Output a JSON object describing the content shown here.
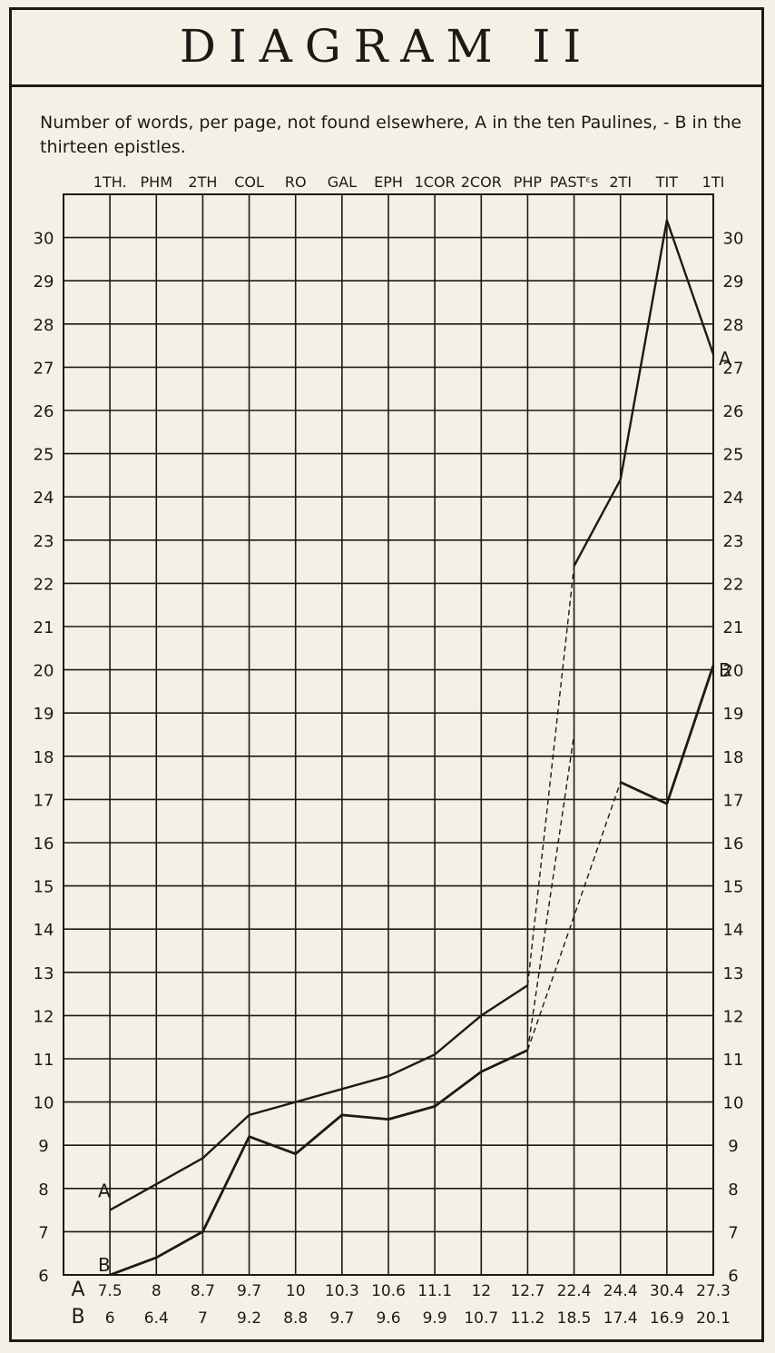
{
  "chart_data": {
    "type": "line",
    "title": "DIAGRAM II",
    "subtitle": "Number of words, per page, not found elsewhere, A in the ten Paulines, - B in the thirteen epistles.",
    "categories": [
      "1TH.",
      "PHM",
      "2TH",
      "COL",
      "RO",
      "GAL",
      "EPH",
      "1COR",
      "2COR",
      "PHP",
      "PASTᵋs",
      "2TI",
      "TIT",
      "1TI"
    ],
    "ylim": [
      6,
      31
    ],
    "yticks": [
      6,
      7,
      8,
      9,
      10,
      11,
      12,
      13,
      14,
      15,
      16,
      17,
      18,
      19,
      20,
      21,
      22,
      23,
      24,
      25,
      26,
      27,
      28,
      29,
      30
    ],
    "grid": true,
    "series": [
      {
        "name": "A",
        "values": [
          7.5,
          null,
          8.7,
          9.7,
          10,
          10.3,
          10.6,
          11.1,
          12,
          12.7,
          22.4,
          24.4,
          30.4,
          27.3
        ],
        "labels": [
          "7.5",
          "8",
          "8.7",
          "9.7",
          "10",
          "10.3",
          "10.6",
          "11.1",
          "12",
          "12.7",
          "22.4",
          "24.4",
          "30.4",
          "27.3"
        ]
      },
      {
        "name": "B",
        "values": [
          6,
          6.4,
          7,
          9.2,
          8.8,
          9.7,
          9.6,
          9.9,
          10.7,
          11.2,
          18.5,
          17.4,
          16.9,
          20.1
        ],
        "labels": [
          "6",
          "6.4",
          "7",
          "9.2",
          "8.8",
          "9.7",
          "9.6",
          "9.9",
          "10.7",
          "11.2",
          "18.5",
          "17.4",
          "16.9",
          "20.1"
        ]
      }
    ]
  }
}
